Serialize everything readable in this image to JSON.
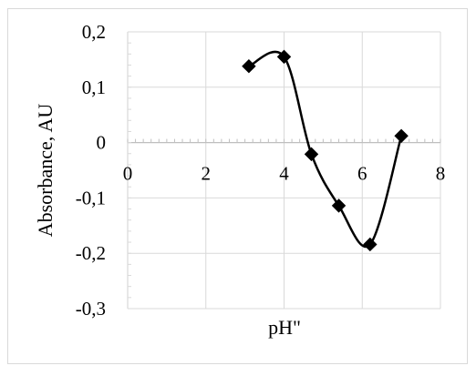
{
  "chart_data": {
    "type": "scatter",
    "title": "",
    "xlabel": "pH\"",
    "ylabel": "Absorbance, AU",
    "xlim": [
      0,
      8
    ],
    "ylim": [
      -0.3,
      0.2
    ],
    "grid": true,
    "xticks": [
      0,
      2,
      4,
      6,
      8
    ],
    "xtick_labels": [
      "0",
      "2",
      "4",
      "6",
      "8"
    ],
    "yticks": [
      0.2,
      0.1,
      0,
      -0.1,
      -0.2,
      -0.3
    ],
    "ytick_labels": [
      "0,2",
      "0,1",
      "0",
      "-0,1",
      "-0,2",
      "-0,3"
    ],
    "series": [
      {
        "marker": "diamond",
        "line": "smooth",
        "color": "#000000",
        "x": [
          3.1,
          4.0,
          4.7,
          5.4,
          6.2,
          7.0
        ],
        "y": [
          0.138,
          0.155,
          -0.021,
          -0.114,
          -0.184,
          0.012
        ]
      }
    ]
  }
}
